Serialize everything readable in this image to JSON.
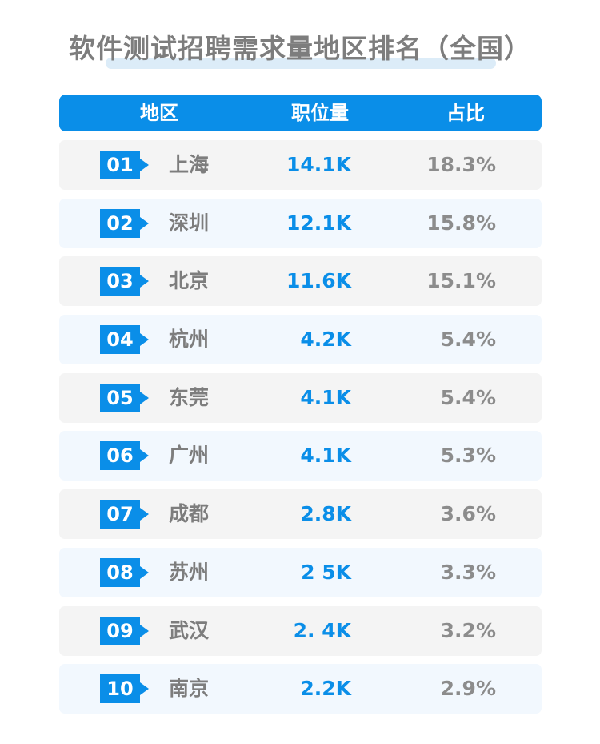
{
  "title": "软件测试招聘需求量地区排名（全国）",
  "header": {
    "region": "地区",
    "jobs": "职位量",
    "share": "占比"
  },
  "chart_data": {
    "type": "table",
    "title": "软件测试招聘需求量地区排名（全国）",
    "columns": [
      "地区",
      "职位量",
      "占比"
    ],
    "rows": [
      {
        "rank": "01",
        "region": "上海",
        "jobs": "14.1K",
        "share": "18.3%"
      },
      {
        "rank": "02",
        "region": "深圳",
        "jobs": "12.1K",
        "share": "15.8%"
      },
      {
        "rank": "03",
        "region": "北京",
        "jobs": "11.6K",
        "share": "15.1%"
      },
      {
        "rank": "04",
        "region": "杭州",
        "jobs": "4.2K",
        "share": "5.4%"
      },
      {
        "rank": "05",
        "region": "东莞",
        "jobs": "4.1K",
        "share": "5.4%"
      },
      {
        "rank": "06",
        "region": "广州",
        "jobs": "4.1K",
        "share": "5.3%"
      },
      {
        "rank": "07",
        "region": "成都",
        "jobs": "2.8K",
        "share": "3.6%"
      },
      {
        "rank": "08",
        "region": "苏州",
        "jobs": "2 5K",
        "share": "3.3%"
      },
      {
        "rank": "09",
        "region": "武汉",
        "jobs": "2. 4K",
        "share": "3.2%"
      },
      {
        "rank": "10",
        "region": "南京",
        "jobs": "2.2K",
        "share": "2.9%"
      }
    ]
  },
  "colors": {
    "accent": "#0a8ee8",
    "title": "#7d7d7d",
    "underline": "#dcecf8",
    "row_odd": "#f4f4f4",
    "row_even": "#f2f8fe"
  }
}
